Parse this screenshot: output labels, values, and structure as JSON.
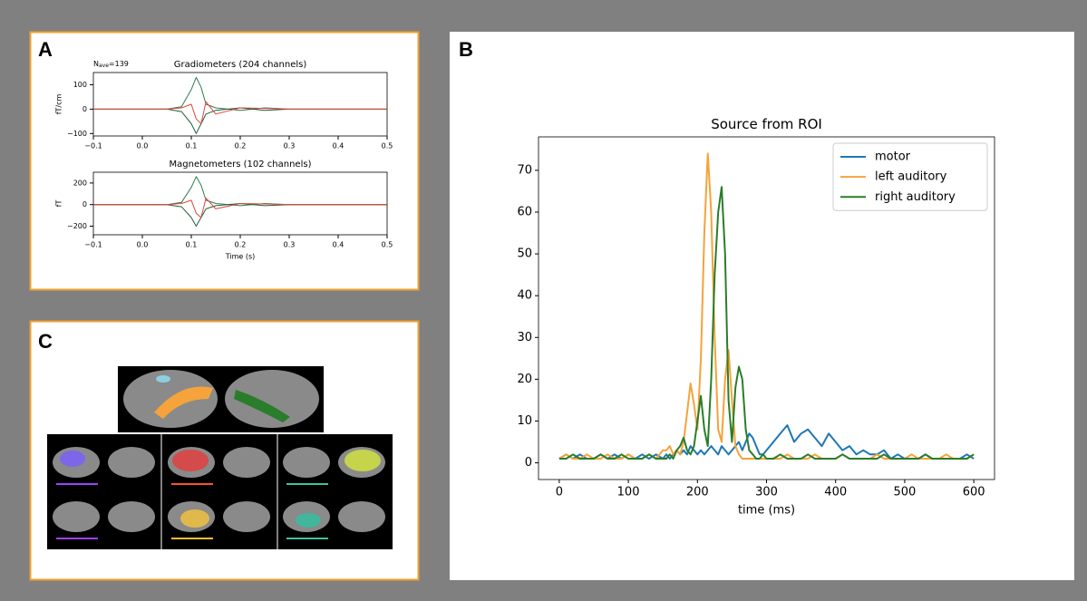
{
  "panel_labels": [
    "A",
    "B",
    "C"
  ],
  "nave_annotation": {
    "text": "N",
    "sub": "ave",
    "rest": "=139"
  },
  "chart_data": [
    {
      "type": "line",
      "title": "Gradiometers (204 channels)",
      "ylabel": "fT/cm",
      "x": [
        -0.1,
        -0.05,
        0,
        0.05,
        0.08,
        0.1,
        0.11,
        0.12,
        0.13,
        0.15,
        0.2,
        0.25,
        0.3,
        0.4,
        0.5
      ],
      "series": [
        {
          "color": "#2e7d4f",
          "values": [
            0,
            0,
            0,
            0,
            10,
            80,
            130,
            90,
            20,
            5,
            -5,
            5,
            0,
            0,
            0
          ]
        },
        {
          "color": "#1f5f3a",
          "values": [
            0,
            0,
            0,
            0,
            -10,
            -60,
            -100,
            -60,
            -20,
            -5,
            5,
            -5,
            0,
            0,
            0
          ]
        },
        {
          "color": "#e0443c",
          "values": [
            0,
            0,
            0,
            0,
            5,
            20,
            -40,
            -60,
            30,
            -20,
            5,
            3,
            0,
            0,
            0
          ]
        }
      ],
      "xlim": [
        -0.1,
        0.5
      ],
      "xticks": [
        {
          "value": -0.1,
          "label": "−0.1"
        },
        {
          "value": 0,
          "label": "0.0"
        },
        0.1,
        0.2,
        0.3,
        0.4,
        0.5
      ],
      "ylim": [
        -110,
        150
      ],
      "yticks": [
        {
          "value": -100,
          "label": "−100"
        },
        0,
        100
      ]
    },
    {
      "type": "line",
      "title": "Magnetometers (102 channels)",
      "ylabel": "fT",
      "xlabel": "Time (s)",
      "x": [
        -0.1,
        -0.05,
        0,
        0.05,
        0.08,
        0.1,
        0.11,
        0.12,
        0.13,
        0.15,
        0.2,
        0.25,
        0.3,
        0.4,
        0.5
      ],
      "series": [
        {
          "color": "#2e7d4f",
          "values": [
            0,
            0,
            0,
            0,
            20,
            160,
            260,
            180,
            40,
            10,
            -10,
            10,
            0,
            0,
            0
          ]
        },
        {
          "color": "#1f5f3a",
          "values": [
            0,
            0,
            0,
            0,
            -20,
            -120,
            -200,
            -120,
            -40,
            -10,
            10,
            -10,
            0,
            0,
            0
          ]
        },
        {
          "color": "#e0443c",
          "values": [
            0,
            0,
            0,
            0,
            10,
            40,
            -80,
            -120,
            60,
            -40,
            10,
            6,
            0,
            0,
            0
          ]
        }
      ],
      "xlim": [
        -0.1,
        0.5
      ],
      "xticks": [
        {
          "value": -0.1,
          "label": "−0.1"
        },
        {
          "value": 0,
          "label": "0.0"
        },
        0.1,
        0.2,
        0.3,
        0.4,
        0.5
      ],
      "ylim": [
        -280,
        300
      ],
      "yticks": [
        {
          "value": -200,
          "label": "−200"
        },
        0,
        200
      ]
    },
    {
      "type": "line",
      "title": "Source from ROI",
      "xlabel": "time (ms)",
      "legend": "upper right",
      "x": [
        0,
        10,
        20,
        30,
        40,
        50,
        60,
        70,
        80,
        90,
        100,
        110,
        120,
        130,
        140,
        150,
        155,
        160,
        165,
        170,
        175,
        180,
        185,
        190,
        195,
        200,
        205,
        210,
        215,
        220,
        225,
        230,
        235,
        240,
        245,
        250,
        255,
        260,
        265,
        270,
        275,
        280,
        285,
        290,
        295,
        300,
        310,
        320,
        330,
        340,
        350,
        360,
        370,
        380,
        390,
        400,
        410,
        420,
        430,
        440,
        450,
        460,
        470,
        480,
        490,
        500,
        510,
        520,
        530,
        540,
        550,
        560,
        570,
        580,
        590,
        600
      ],
      "series": [
        {
          "name": "motor",
          "color": "#1f77b4",
          "values": [
            1,
            2,
            1,
            2,
            1,
            1,
            2,
            1,
            2,
            1,
            2,
            1,
            2,
            1,
            2,
            1,
            2,
            1,
            2,
            3,
            2,
            3,
            2,
            4,
            3,
            2,
            3,
            2,
            3,
            4,
            3,
            2,
            4,
            3,
            2,
            3,
            4,
            5,
            3,
            5,
            7,
            6,
            4,
            2,
            2,
            3,
            5,
            7,
            9,
            5,
            7,
            8,
            6,
            4,
            7,
            5,
            3,
            4,
            2,
            3,
            2,
            2,
            3,
            1,
            2,
            1,
            1,
            1,
            2,
            1,
            1,
            1,
            1,
            1,
            2,
            1
          ]
        },
        {
          "name": "left auditory",
          "color": "#f5a33a",
          "values": [
            1,
            2,
            1,
            1,
            2,
            1,
            1,
            2,
            1,
            1,
            2,
            1,
            1,
            2,
            1,
            3,
            3,
            4,
            2,
            3,
            2,
            5,
            12,
            19,
            14,
            8,
            25,
            55,
            74,
            60,
            30,
            8,
            5,
            20,
            27,
            15,
            4,
            2,
            1,
            1,
            1,
            1,
            1,
            1,
            1,
            1,
            1,
            1,
            2,
            1,
            1,
            1,
            2,
            1,
            1,
            1,
            2,
            1,
            1,
            1,
            1,
            2,
            1,
            1,
            1,
            1,
            2,
            1,
            1,
            1,
            1,
            2,
            1,
            1,
            1,
            2
          ]
        },
        {
          "name": "right auditory",
          "color": "#2a7d2a",
          "values": [
            1,
            1,
            2,
            1,
            1,
            1,
            2,
            1,
            1,
            2,
            1,
            1,
            1,
            2,
            1,
            1,
            1,
            2,
            1,
            3,
            4,
            6,
            3,
            2,
            4,
            10,
            16,
            8,
            4,
            20,
            45,
            60,
            66,
            50,
            15,
            5,
            18,
            23,
            20,
            8,
            3,
            2,
            1,
            1,
            2,
            1,
            1,
            2,
            1,
            1,
            1,
            2,
            1,
            1,
            1,
            1,
            2,
            1,
            1,
            1,
            1,
            1,
            2,
            1,
            1,
            1,
            1,
            1,
            2,
            1,
            1,
            1,
            1,
            1,
            1,
            2
          ]
        }
      ],
      "xlim": [
        -30,
        630
      ],
      "xticks": [
        0,
        100,
        200,
        300,
        400,
        500,
        600
      ],
      "ylim": [
        -4,
        78
      ],
      "yticks": [
        0,
        10,
        20,
        30,
        40,
        50,
        60,
        70
      ]
    }
  ]
}
